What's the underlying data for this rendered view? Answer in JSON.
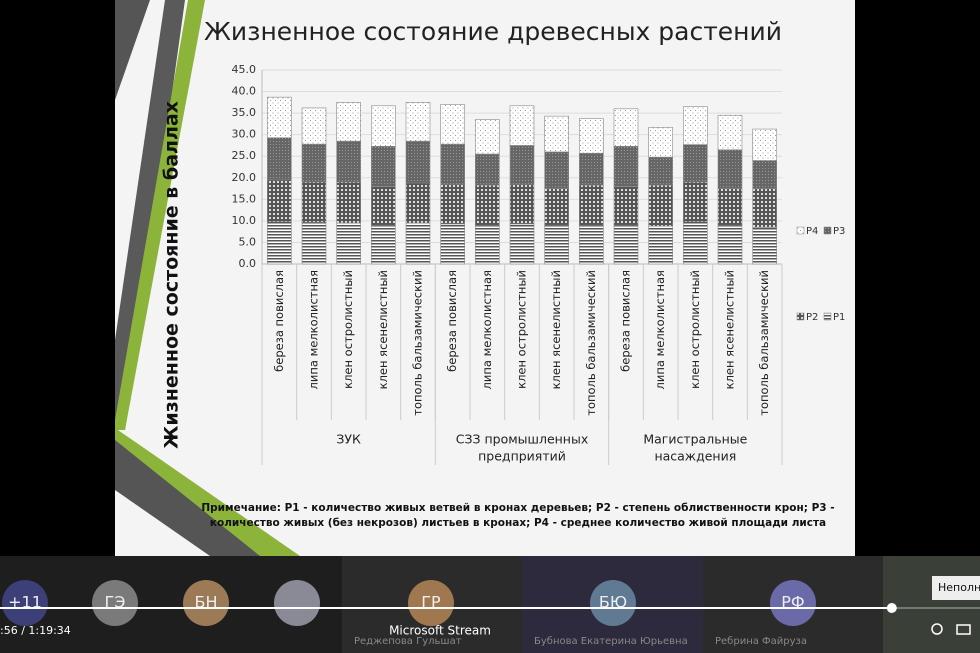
{
  "chart_data": {
    "type": "bar",
    "stacked": true,
    "title": "Жизненное состояние древесных растений",
    "y_label": "Жизненное состояние в баллах",
    "categories": [
      "береза повислая",
      "липа мелколистная",
      "клен остролистный",
      "клен ясенелистный",
      "тополь бальзамический",
      "береза повислая",
      "липа мелколистная",
      "клен остролистный",
      "клен ясенелистный",
      "тополь бальзамический",
      "береза повислая",
      "липа мелколистная",
      "клен остролистный",
      "клен ясенелистный",
      "тополь бальзамический"
    ],
    "groups": [
      {
        "lines": [
          "ЗУК"
        ],
        "size": 5
      },
      {
        "lines": [
          "СЗЗ промышленных",
          "предприятий"
        ],
        "size": 5
      },
      {
        "lines": [
          "Магистральные",
          "насаждения"
        ],
        "size": 5
      }
    ],
    "series": [
      {
        "name": "P1",
        "color": "#7a7a7a",
        "values": [
          9.8,
          9.7,
          9.5,
          9.0,
          9.5,
          9.3,
          9.0,
          9.3,
          9.0,
          9.0,
          9.0,
          8.8,
          9.8,
          9.0,
          8.5
        ]
      },
      {
        "name": "P2",
        "color": "#9a9a9a",
        "values": [
          9.7,
          9.3,
          9.5,
          9.0,
          9.3,
          9.2,
          9.3,
          9.2,
          8.5,
          9.3,
          9.0,
          9.5,
          9.2,
          8.5,
          9.0
        ]
      },
      {
        "name": "P3",
        "color": "#6e6e6e",
        "values": [
          9.8,
          8.8,
          9.5,
          9.3,
          9.7,
          9.3,
          7.2,
          9.0,
          8.5,
          7.4,
          9.3,
          6.5,
          8.7,
          9.0,
          6.5
        ]
      },
      {
        "name": "P4",
        "color": "#ffffff",
        "values": [
          9.4,
          8.4,
          9.0,
          9.4,
          9.0,
          9.2,
          8.0,
          9.2,
          8.3,
          8.0,
          8.7,
          6.9,
          8.8,
          8.0,
          7.3
        ]
      }
    ],
    "ylim": [
      0,
      45
    ],
    "yticks": [
      {
        "value": 0,
        "label": "0.0"
      },
      {
        "value": 5,
        "label": "5.0"
      },
      {
        "value": 10,
        "label": "10.0"
      },
      {
        "value": 15,
        "label": "15.0"
      },
      {
        "value": 20,
        "label": "20.0"
      },
      {
        "value": 25,
        "label": "25.0"
      },
      {
        "value": 30,
        "label": "30.0"
      },
      {
        "value": 35,
        "label": "35.0"
      },
      {
        "value": 40,
        "label": "40.0"
      },
      {
        "value": 45,
        "label": "45.0"
      }
    ],
    "grid": true,
    "note": [
      "Примечание: Р1 - количество живых ветвей в кронах деревьев; Р2 - степень облиственности крон; Р3 -",
      "количество живых (без некрозов) листьев в кронах; Р4 - среднее количество живой площади листа"
    ]
  },
  "player": {
    "participants": [
      "+11",
      "ГЭ",
      "БН",
      "ГР",
      "БЮ",
      "РФ"
    ],
    "names": [
      "Реджепова Гульшат",
      "Бубнова Екатерина Юрьевна",
      "Ребрина Файруза"
    ],
    "time": ":56 / 1:19:34",
    "app": "Microsoft Stream",
    "tooltip": "Неполн",
    "progress": 0.91
  }
}
